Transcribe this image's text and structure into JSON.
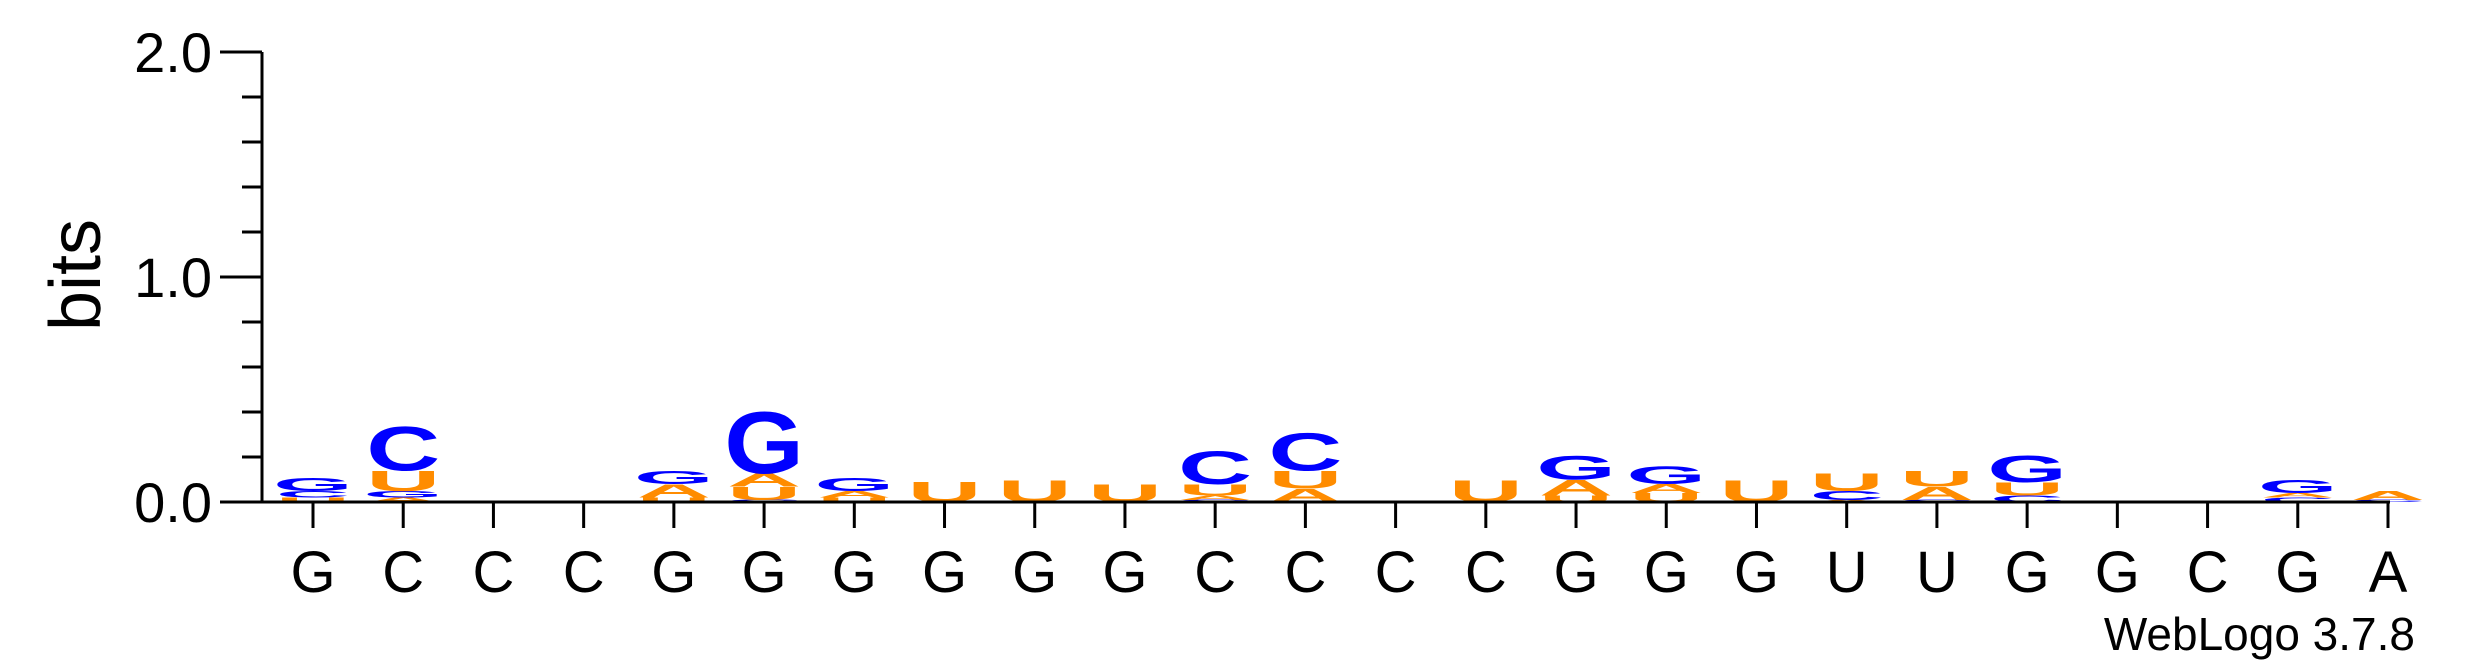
{
  "chart_data": {
    "type": "sequence-logo",
    "ylabel": "bits",
    "ylim": [
      0,
      2.0
    ],
    "yticks": [
      {
        "value": 0.0,
        "label": "0.0"
      },
      {
        "value": 1.0,
        "label": "1.0"
      },
      {
        "value": 2.0,
        "label": "2.0"
      }
    ],
    "positions": [
      "G",
      "C",
      "C",
      "C",
      "G",
      "G",
      "G",
      "G",
      "G",
      "G",
      "C",
      "C",
      "C",
      "C",
      "G",
      "G",
      "G",
      "U",
      "U",
      "G",
      "G",
      "C",
      "G",
      "A"
    ],
    "stacks": [
      [
        {
          "l": "U",
          "h": 0.02
        },
        {
          "l": "C",
          "h": 0.03
        },
        {
          "l": "G",
          "h": 0.06
        }
      ],
      [
        {
          "l": "A",
          "h": 0.02
        },
        {
          "l": "G",
          "h": 0.03
        },
        {
          "l": "U",
          "h": 0.09
        },
        {
          "l": "C",
          "h": 0.2
        }
      ],
      [],
      [],
      [
        {
          "l": "U",
          "h": 0.02
        },
        {
          "l": "A",
          "h": 0.06
        },
        {
          "l": "G",
          "h": 0.06
        }
      ],
      [
        {
          "l": "C",
          "h": 0.01
        },
        {
          "l": "U",
          "h": 0.06
        },
        {
          "l": "A",
          "h": 0.06
        },
        {
          "l": "G",
          "h": 0.28
        }
      ],
      [
        {
          "l": "U",
          "h": 0.02
        },
        {
          "l": "A",
          "h": 0.03
        },
        {
          "l": "G",
          "h": 0.06
        }
      ],
      [
        {
          "l": "U",
          "h": 0.09
        }
      ],
      [
        {
          "l": "U",
          "h": 0.1
        }
      ],
      [
        {
          "l": "U",
          "h": 0.08
        }
      ],
      [
        {
          "l": "C",
          "h": 0.01
        },
        {
          "l": "A",
          "h": 0.02
        },
        {
          "l": "U",
          "h": 0.05
        },
        {
          "l": "C",
          "h": 0.15
        }
      ],
      [
        {
          "l": "A",
          "h": 0.06
        },
        {
          "l": "U",
          "h": 0.08
        },
        {
          "l": "C",
          "h": 0.17
        }
      ],
      [],
      [
        {
          "l": "U",
          "h": 0.1
        }
      ],
      [
        {
          "l": "U",
          "h": 0.03
        },
        {
          "l": "A",
          "h": 0.07
        },
        {
          "l": "G",
          "h": 0.11
        }
      ],
      [
        {
          "l": "U",
          "h": 0.04
        },
        {
          "l": "A",
          "h": 0.04
        },
        {
          "l": "G",
          "h": 0.08
        }
      ],
      [
        {
          "l": "U",
          "h": 0.1
        }
      ],
      [
        {
          "l": "A",
          "h": 0.01
        },
        {
          "l": "C",
          "h": 0.04
        },
        {
          "l": "U",
          "h": 0.08
        }
      ],
      [
        {
          "l": "C",
          "h": 0.01
        },
        {
          "l": "A",
          "h": 0.06
        },
        {
          "l": "U",
          "h": 0.07
        }
      ],
      [
        {
          "l": "C",
          "h": 0.03
        },
        {
          "l": "U",
          "h": 0.06
        },
        {
          "l": "G",
          "h": 0.12
        }
      ],
      [],
      [],
      [
        {
          "l": "C",
          "h": 0.02
        },
        {
          "l": "A",
          "h": 0.02
        },
        {
          "l": "G",
          "h": 0.06
        }
      ],
      [
        {
          "l": "C",
          "h": 0.01
        },
        {
          "l": "A",
          "h": 0.04
        }
      ]
    ],
    "colors": {
      "A": "#ff8c00",
      "U": "#ff8c00",
      "C": "#0000ff",
      "G": "#0000ff"
    },
    "credit": "WebLogo 3.7.8"
  }
}
